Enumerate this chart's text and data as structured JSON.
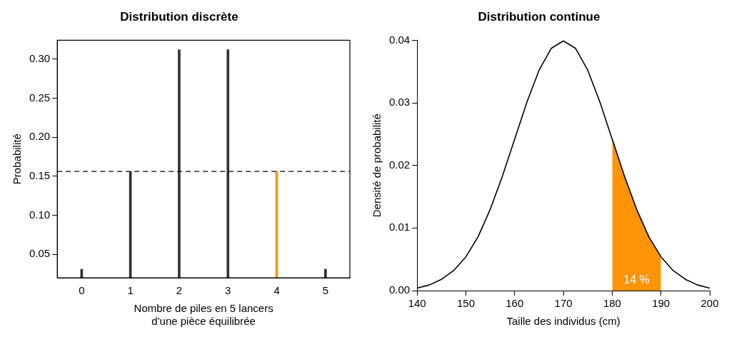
{
  "chart_data": [
    {
      "type": "bar",
      "title": "Distribution discrète",
      "xlabel": "Nombre de piles en 5 lancers\nd'une pièce équilibrée",
      "ylabel": "Probabilité",
      "categories": [
        "0",
        "1",
        "2",
        "3",
        "4",
        "5"
      ],
      "values": [
        0.031,
        0.156,
        0.312,
        0.312,
        0.156,
        0.031
      ],
      "colors": [
        "#333333",
        "#333333",
        "#333333",
        "#333333",
        "#ff9408",
        "#333333"
      ],
      "ylim": [
        0.02,
        0.324
      ],
      "yticks": [
        0.05,
        {
          "value": 0.1,
          "label": "0.10"
        },
        0.15,
        {
          "value": 0.2,
          "label": "0.20"
        },
        0.25,
        {
          "value": 0.3,
          "label": "0.30"
        }
      ],
      "ref_lines": [
        {
          "axis": "y",
          "value": 0.156,
          "line_style": "dashed",
          "color": "#000000"
        }
      ],
      "grid": false,
      "legend": false
    },
    {
      "type": "line",
      "title": "Distribution continue",
      "xlabel": "Taille des individus (cm)",
      "ylabel": "Densité de probabilité",
      "series": [
        {
          "type": "area",
          "color": "#ff9408",
          "x": [
            180,
            182.5,
            185,
            187.5,
            190
          ],
          "values": [
            0.0242,
            0.0183,
            0.013,
            0.0086,
            0.0054
          ]
        },
        {
          "type": "line",
          "color": "#000000",
          "x": [
            140,
            142.5,
            145,
            147.5,
            150,
            152.5,
            155,
            157.5,
            160,
            162.5,
            165,
            167.5,
            170,
            172.5,
            175,
            177.5,
            180,
            182.5,
            185,
            187.5,
            190,
            192.5,
            195,
            197.5,
            200
          ],
          "values": [
            0.0004,
            0.0009,
            0.0018,
            0.0032,
            0.0054,
            0.0086,
            0.013,
            0.0183,
            0.0242,
            0.0301,
            0.0352,
            0.0387,
            0.0399,
            0.0387,
            0.0352,
            0.0301,
            0.0242,
            0.0183,
            0.013,
            0.0086,
            0.0054,
            0.0032,
            0.0018,
            0.0009,
            0.0004
          ]
        }
      ],
      "xlim": [
        140,
        200
      ],
      "xticks": [
        140,
        150,
        160,
        170,
        180,
        190,
        200
      ],
      "ylim": [
        0,
        0.04
      ],
      "yticks": [
        {
          "value": 0,
          "label": "0.00"
        },
        0.01,
        0.02,
        0.03,
        0.04
      ],
      "annotations": [
        "14 %"
      ],
      "marker": "none",
      "grid": false,
      "legend": false
    }
  ]
}
